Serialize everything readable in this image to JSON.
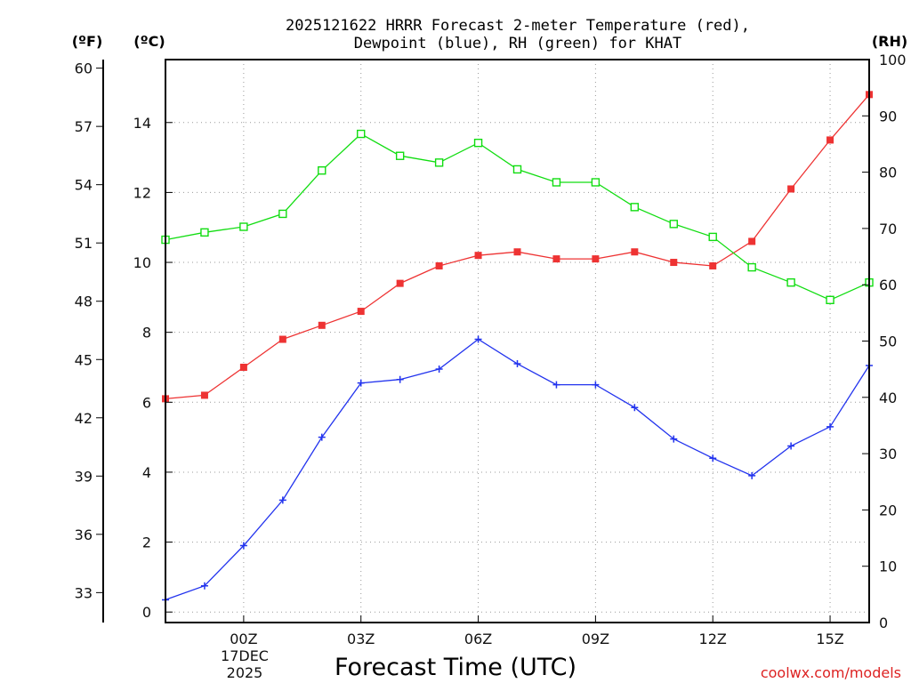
{
  "chart_data": {
    "type": "line",
    "title_line1": "2025121622 HRRR Forecast 2-meter Temperature (red),",
    "title_line2": "Dewpoint (blue), RH (green) for KHAT",
    "unit_f": "(ºF)",
    "unit_c": "(ºC)",
    "unit_rh": "(RH)",
    "xlabel": "Forecast Time (UTC)",
    "watermark": "coolwx.com/models",
    "x_hours": [
      -2,
      -1,
      0,
      1,
      2,
      3,
      4,
      5,
      6,
      7,
      8,
      9,
      10,
      11,
      12,
      13,
      14,
      15,
      16
    ],
    "xlim": [
      -2,
      16
    ],
    "x_ticks": [
      {
        "hour": 0,
        "label": "00Z"
      },
      {
        "hour": 3,
        "label": "03Z"
      },
      {
        "hour": 6,
        "label": "06Z"
      },
      {
        "hour": 9,
        "label": "09Z"
      },
      {
        "hour": 12,
        "label": "12Z"
      },
      {
        "hour": 15,
        "label": "15Z"
      }
    ],
    "date_day": "17DEC",
    "date_year": "2025",
    "celsius_axis": {
      "range": [
        -0.3,
        15.8
      ],
      "ticks": [
        0,
        2,
        4,
        6,
        8,
        10,
        12,
        14
      ]
    },
    "fahrenheit_ticks": [
      33,
      36,
      39,
      42,
      45,
      48,
      51,
      54,
      57,
      60
    ],
    "rh_axis": {
      "range": [
        0,
        100
      ],
      "ticks": [
        0,
        10,
        20,
        30,
        40,
        50,
        60,
        70,
        80,
        90,
        100
      ]
    },
    "series": [
      {
        "name": "Temperature",
        "unit": "C",
        "color": "#ee3333",
        "marker": "filled-square",
        "values": [
          6.1,
          6.2,
          7.0,
          7.8,
          8.2,
          8.6,
          9.4,
          9.9,
          10.2,
          10.3,
          10.1,
          10.1,
          10.3,
          10.0,
          9.9,
          10.6,
          12.1,
          13.5,
          14.8
        ]
      },
      {
        "name": "Dewpoint",
        "unit": "C",
        "color": "#2233ee",
        "marker": "plus",
        "values": [
          0.35,
          0.75,
          1.9,
          3.2,
          5.0,
          6.55,
          6.65,
          6.95,
          7.8,
          7.1,
          6.5,
          6.5,
          5.85,
          4.95,
          4.4,
          3.9,
          4.75,
          5.3,
          7.05
        ]
      },
      {
        "name": "Relative Humidity",
        "unit": "%",
        "color": "#11dd11",
        "marker": "open-square",
        "values": [
          68,
          69.3,
          70.3,
          72.6,
          80.3,
          86.8,
          82.9,
          81.7,
          85.2,
          80.5,
          78.2,
          78.2,
          73.8,
          70.8,
          68.5,
          63.1,
          60.4,
          57.3,
          60.4
        ]
      }
    ]
  }
}
